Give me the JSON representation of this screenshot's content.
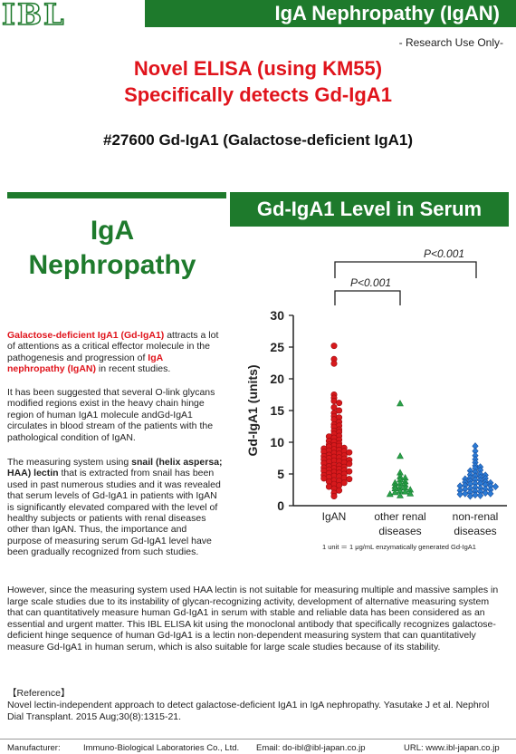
{
  "header": {
    "logo": "IBL",
    "title": "IgA Nephropathy (IgAN)",
    "research_use": "- Research Use Only-"
  },
  "main_title": {
    "line1": "Novel ELISA (using KM55)",
    "line2": "Specifically detects Gd-IgA1"
  },
  "product": "#27600 Gd-IgA1 (Galactose-deficient IgA1)",
  "left_banner": {
    "line1": "IgA",
    "line2": "Nephropathy"
  },
  "right_banner": "Gd-IgA1 Level in Serum",
  "paragraphs": {
    "p1_red": "Galactose-deficient IgA1 (Gd-IgA1)",
    "p1_mid": " attracts a lot of attentions as a critical effector molecule in the pathogenesis and progression of ",
    "p1_red2": "IgA nephropathy (IgAN)",
    "p1_end": " in recent studies.",
    "p2": "It has been suggested that several O-link glycans modified regions exist in the heavy chain hinge region of human IgA1 molecule andGd-IgA1 circulates in blood stream of the patients with the pathological condition of IgAN.",
    "p3_a": "The measuring system using ",
    "p3_b1": "snail (helix aspersa; HAA) lectin",
    "p3_c": " that is extracted from snail has been used in past numerous studies and it was revealed that serum levels of Gd-IgA1 in patients with IgAN is significantly elevated compared with the level of healthy subjects or patients with renal diseases other than IgAN. Thus, the importance and purpose of measuring serum Gd-IgA1 level have been gradually recognized from such studies.",
    "p4": "However, since the measuring system used HAA lectin is not suitable for measuring multiple and massive samples in large scale studies due to its instability of glycan-recognizing activity, development of alternative measuring system that can quantitatively measure human Gd-IgA1 in serum with stable and reliable data has been considered as an essential and urgent matter. This IBL ELISA kit using the monoclonal antibody that specifically recognizes galactose-deficient hinge sequence of human Gd-IgA1 is a lectin non-dependent measuring system that can quantitatively measure Gd-IgA1 in human serum, which is also suitable for large scale studies because of its stability."
  },
  "reference": {
    "heading": "【Reference】",
    "text": "Novel lectin-independent approach to detect galactose-deficient IgA1 in IgA nephropathy. Yasutake J et al. Nephrol Dial Transplant. 2015 Aug;30(8):1315-21."
  },
  "footer": {
    "manufacturer_label": "Manufacturer:",
    "manufacturer": "Immuno-Biological Laboratories Co., Ltd.",
    "email": "Email: do-ibl@ibl-japan.co.jp",
    "url": "URL: www.ibl-japan.co.jp"
  },
  "chart_data": {
    "type": "scatter",
    "ylabel": "Gd-IgA1 (units)",
    "ylim": [
      0,
      30
    ],
    "yticks": [
      0,
      5,
      10,
      15,
      20,
      25,
      30
    ],
    "categories": [
      "IgAN",
      "other renal diseases",
      "non-renal diseases"
    ],
    "category_labels": [
      [
        "IgAN"
      ],
      [
        "other renal",
        "diseases"
      ],
      [
        "non-renal",
        "diseases"
      ]
    ],
    "significance": [
      {
        "label": "P<0.001",
        "between": [
          "IgAN",
          "other renal diseases"
        ]
      },
      {
        "label": "P<0.001",
        "between": [
          "IgAN",
          "non-renal diseases"
        ]
      }
    ],
    "footnote": "1 unit ＝ 1 μg/mL enzymatically generated Gd-IgA1",
    "series": [
      {
        "group": "IgAN",
        "marker": "circle",
        "color": "#d7191c",
        "stroke": "#9e0d10",
        "values": [
          25.2,
          23.1,
          22.4,
          17.5,
          17.0,
          16.5,
          16.2,
          15.5,
          15.0,
          14.6,
          14.1,
          13.6,
          13.2,
          12.8,
          12.4,
          12.0,
          11.6,
          11.3,
          11.0,
          10.7,
          10.4,
          10.1,
          9.8,
          9.5,
          9.3,
          9.0,
          8.8,
          8.6,
          8.4,
          8.2,
          8.0,
          7.8,
          7.6,
          7.4,
          7.2,
          7.0,
          6.8,
          6.6,
          6.4,
          6.2,
          6.0,
          5.8,
          5.6,
          5.4,
          5.2,
          5.0,
          4.8,
          4.6,
          4.4,
          4.2,
          4.0,
          3.8,
          3.6,
          3.4,
          3.2,
          3.0,
          2.7,
          2.4,
          2.0,
          1.5,
          13.9,
          12.6,
          11.8,
          10.9,
          10.2,
          9.6,
          9.1,
          8.7,
          8.3,
          7.9,
          7.5,
          7.1,
          6.7,
          6.3,
          5.9,
          5.5,
          5.1,
          4.7,
          4.3,
          3.9,
          9.4,
          8.5,
          7.7,
          6.9,
          6.1,
          5.3,
          4.5,
          8.9,
          7.3,
          5.7
        ]
      },
      {
        "group": "other renal diseases",
        "marker": "triangle",
        "color": "#2ca24a",
        "stroke": "#137a2e",
        "values": [
          16.1,
          7.8,
          5.2,
          4.6,
          4.1,
          3.8,
          3.5,
          3.3,
          3.1,
          2.9,
          2.7,
          2.5,
          2.3,
          2.1,
          1.9,
          1.6,
          4.4,
          3.6,
          2.8,
          2.2,
          1.8
        ]
      },
      {
        "group": "non-renal diseases",
        "marker": "diamond",
        "color": "#2b7bd6",
        "stroke": "#1a4f9c",
        "values": [
          9.4,
          8.6,
          7.9,
          7.3,
          6.8,
          6.3,
          5.9,
          5.6,
          5.3,
          5.0,
          4.7,
          4.5,
          4.3,
          4.1,
          3.9,
          3.7,
          3.5,
          3.3,
          3.1,
          2.9,
          2.7,
          2.5,
          2.3,
          2.1,
          1.9,
          1.7,
          1.5,
          5.5,
          4.8,
          4.2,
          3.6,
          3.0,
          2.4,
          1.8,
          6.1,
          4.0,
          3.4,
          2.8,
          2.2,
          4.9,
          3.8,
          3.2,
          2.6,
          2.0,
          1.6,
          4.4,
          3.1,
          2.6,
          1.9,
          3.5
        ]
      }
    ]
  }
}
